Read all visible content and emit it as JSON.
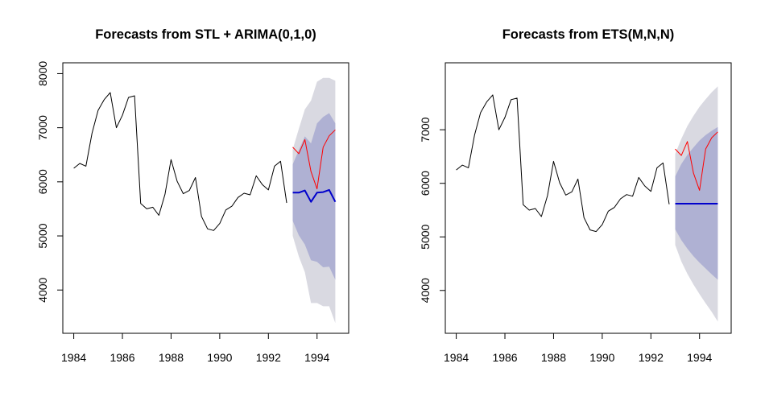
{
  "chart_data": [
    {
      "type": "line",
      "title": "Forecasts from STL +  ARIMA(0,1,0)",
      "xlabel": "",
      "ylabel": "",
      "xlim": [
        1983.55,
        1995.3
      ],
      "ylim": [
        3200,
        8200
      ],
      "x_ticks": [
        1984,
        1986,
        1988,
        1990,
        1992,
        1994
      ],
      "x_tick_labels": [
        "1984",
        "1986",
        "1988",
        "1990",
        "1992",
        "1994"
      ],
      "y_ticks": [
        4000,
        5000,
        6000,
        7000,
        8000
      ],
      "y_tick_labels": [
        "4000",
        "5000",
        "6000",
        "7000",
        "8000"
      ],
      "series": [
        {
          "name": "historical",
          "color": "#000000",
          "x": [
            1984.0,
            1984.25,
            1984.5,
            1984.75,
            1985.0,
            1985.25,
            1985.5,
            1985.75,
            1986.0,
            1986.25,
            1986.5,
            1986.75,
            1987.0,
            1987.25,
            1987.5,
            1987.75,
            1988.0,
            1988.25,
            1988.5,
            1988.75,
            1989.0,
            1989.25,
            1989.5,
            1989.75,
            1990.0,
            1990.25,
            1990.5,
            1990.75,
            1991.0,
            1991.25,
            1991.5,
            1991.75,
            1992.0,
            1992.25,
            1992.5,
            1992.75
          ],
          "y": [
            6250,
            6340,
            6290,
            6900,
            7320,
            7520,
            7650,
            7000,
            7230,
            7560,
            7590,
            5600,
            5500,
            5530,
            5380,
            5770,
            6410,
            6010,
            5780,
            5840,
            6080,
            5360,
            5130,
            5100,
            5230,
            5480,
            5550,
            5710,
            5790,
            5760,
            6110,
            5950,
            5850,
            6290,
            6380,
            5610
          ]
        },
        {
          "name": "actual (test)",
          "color": "#ff0000",
          "x": [
            1993.0,
            1993.25,
            1993.5,
            1993.75,
            1994.0,
            1994.25,
            1994.5,
            1994.75
          ],
          "y": [
            6640,
            6520,
            6780,
            6190,
            5870,
            6640,
            6850,
            6960
          ]
        },
        {
          "name": "point forecast",
          "color": "#0000cc",
          "x": [
            1993.0,
            1993.25,
            1993.5,
            1993.75,
            1994.0,
            1994.25,
            1994.5,
            1994.75
          ],
          "y": [
            5800,
            5800,
            5840,
            5630,
            5800,
            5810,
            5850,
            5630
          ]
        }
      ],
      "intervals": [
        {
          "name": "95%",
          "color": "#d9d9e1",
          "x": [
            1993.0,
            1993.25,
            1993.5,
            1993.75,
            1994.0,
            1994.25,
            1994.5,
            1994.75
          ],
          "lower": [
            5000,
            4620,
            4330,
            3760,
            3760,
            3700,
            3700,
            3390
          ],
          "upper": [
            6600,
            6980,
            7340,
            7500,
            7850,
            7920,
            7920,
            7870
          ]
        },
        {
          "name": "80%",
          "color": "#afb1d3",
          "x": [
            1993.0,
            1993.25,
            1993.5,
            1993.75,
            1994.0,
            1994.25,
            1994.5,
            1994.75
          ],
          "lower": [
            5280,
            5010,
            4840,
            4550,
            4520,
            4420,
            4430,
            4190
          ],
          "upper": [
            6320,
            6590,
            6840,
            6710,
            7080,
            7200,
            7270,
            7080
          ]
        }
      ]
    },
    {
      "type": "line",
      "title": "Forecasts from ETS(M,N,N)",
      "xlabel": "",
      "ylabel": "",
      "xlim": [
        1983.55,
        1995.3
      ],
      "ylim": [
        3200,
        8250
      ],
      "x_ticks": [
        1984,
        1986,
        1988,
        1990,
        1992,
        1994
      ],
      "x_tick_labels": [
        "1984",
        "1986",
        "1988",
        "1990",
        "1992",
        "1994"
      ],
      "y_ticks": [
        4000,
        5000,
        6000,
        7000
      ],
      "y_tick_labels": [
        "4000",
        "5000",
        "6000",
        "7000"
      ],
      "series": [
        {
          "name": "historical",
          "color": "#000000",
          "x": [
            1984.0,
            1984.25,
            1984.5,
            1984.75,
            1985.0,
            1985.25,
            1985.5,
            1985.75,
            1986.0,
            1986.25,
            1986.5,
            1986.75,
            1987.0,
            1987.25,
            1987.5,
            1987.75,
            1988.0,
            1988.25,
            1988.5,
            1988.75,
            1989.0,
            1989.25,
            1989.5,
            1989.75,
            1990.0,
            1990.25,
            1990.5,
            1990.75,
            1991.0,
            1991.25,
            1991.5,
            1991.75,
            1992.0,
            1992.25,
            1992.5,
            1992.75
          ],
          "y": [
            6250,
            6340,
            6290,
            6900,
            7320,
            7520,
            7650,
            7000,
            7230,
            7560,
            7590,
            5600,
            5500,
            5530,
            5380,
            5770,
            6410,
            6010,
            5780,
            5840,
            6080,
            5360,
            5130,
            5100,
            5230,
            5480,
            5550,
            5710,
            5790,
            5760,
            6110,
            5950,
            5850,
            6290,
            6380,
            5610
          ]
        },
        {
          "name": "actual (test)",
          "color": "#ff0000",
          "x": [
            1993.0,
            1993.25,
            1993.5,
            1993.75,
            1994.0,
            1994.25,
            1994.5,
            1994.75
          ],
          "y": [
            6640,
            6520,
            6780,
            6190,
            5870,
            6640,
            6850,
            6960
          ]
        },
        {
          "name": "point forecast",
          "color": "#0000cc",
          "x": [
            1993.0,
            1994.75
          ],
          "y": [
            5620,
            5620
          ]
        }
      ],
      "intervals": [
        {
          "name": "95%",
          "color": "#d9d9e1",
          "x": [
            1993.0,
            1993.25,
            1993.5,
            1993.75,
            1994.0,
            1994.25,
            1994.5,
            1994.75
          ],
          "lower": [
            4850,
            4540,
            4310,
            4110,
            3930,
            3760,
            3600,
            3420
          ],
          "upper": [
            6550,
            6830,
            7070,
            7260,
            7430,
            7570,
            7700,
            7810
          ]
        },
        {
          "name": "80%",
          "color": "#afb1d3",
          "x": [
            1993.0,
            1993.25,
            1993.5,
            1993.75,
            1994.0,
            1994.25,
            1994.5,
            1994.75
          ],
          "lower": [
            5140,
            4940,
            4780,
            4640,
            4520,
            4410,
            4300,
            4200
          ],
          "upper": [
            6130,
            6360,
            6530,
            6670,
            6800,
            6900,
            6980,
            7050
          ]
        }
      ]
    }
  ]
}
